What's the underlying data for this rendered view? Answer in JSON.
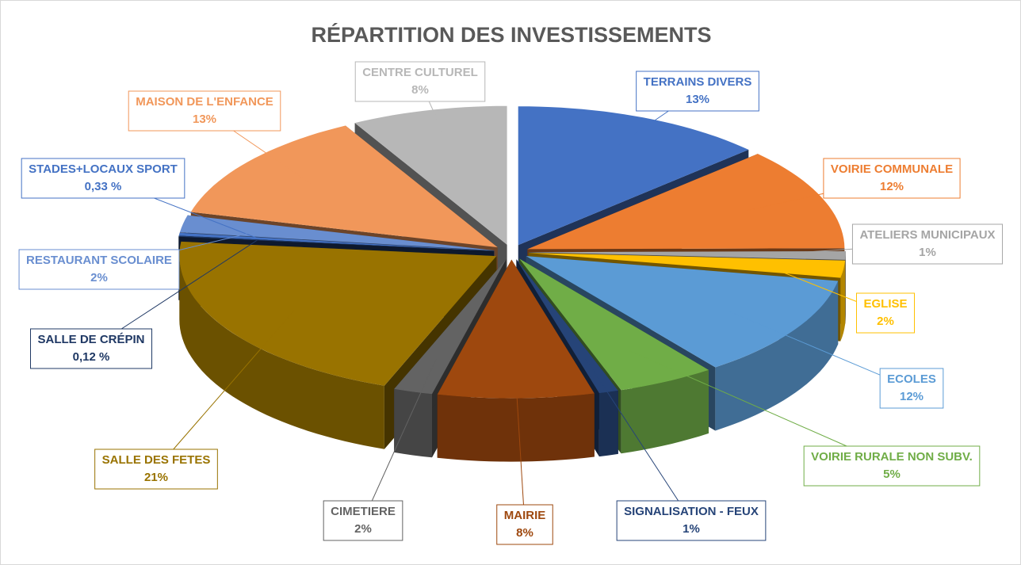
{
  "chart_data": {
    "type": "pie3d",
    "title": "RÉPARTITION DES INVESTISSEMENTS",
    "categories": [
      "TERRAINS DIVERS",
      "VOIRIE COMMUNALE",
      "ATELIERS MUNICIPAUX",
      "EGLISE",
      "ECOLES",
      "VOIRIE RURALE NON SUBV.",
      "SIGNALISATION - FEUX",
      "MAIRIE",
      "CIMETIERE",
      "SALLE DES FETES",
      "SALLE DE CRÉPIN",
      "STADES+LOCAUX SPORT",
      "RESTAURANT SCOLAIRE",
      "MAISON DE L'ENFANCE",
      "CENTRE CULTUREL"
    ],
    "values": [
      13,
      12,
      1,
      2,
      12,
      5,
      1,
      8,
      2,
      21,
      0.12,
      0.33,
      2,
      13,
      8
    ],
    "value_labels": [
      "13%",
      "12%",
      "1%",
      "2%",
      "12%",
      "5%",
      "1%",
      "8%",
      "2%",
      "21%",
      "0,12 %",
      "0,33 %",
      "2%",
      "13%",
      "8%"
    ],
    "colors": [
      "#4472c4",
      "#ed7d31",
      "#a5a5a5",
      "#ffc000",
      "#5b9bd5",
      "#70ad47",
      "#264478",
      "#9e480e",
      "#636363",
      "#997300",
      "#1f3864",
      "#4472c4",
      "#698ed0",
      "#f1975a",
      "#b7b7b7"
    ]
  }
}
